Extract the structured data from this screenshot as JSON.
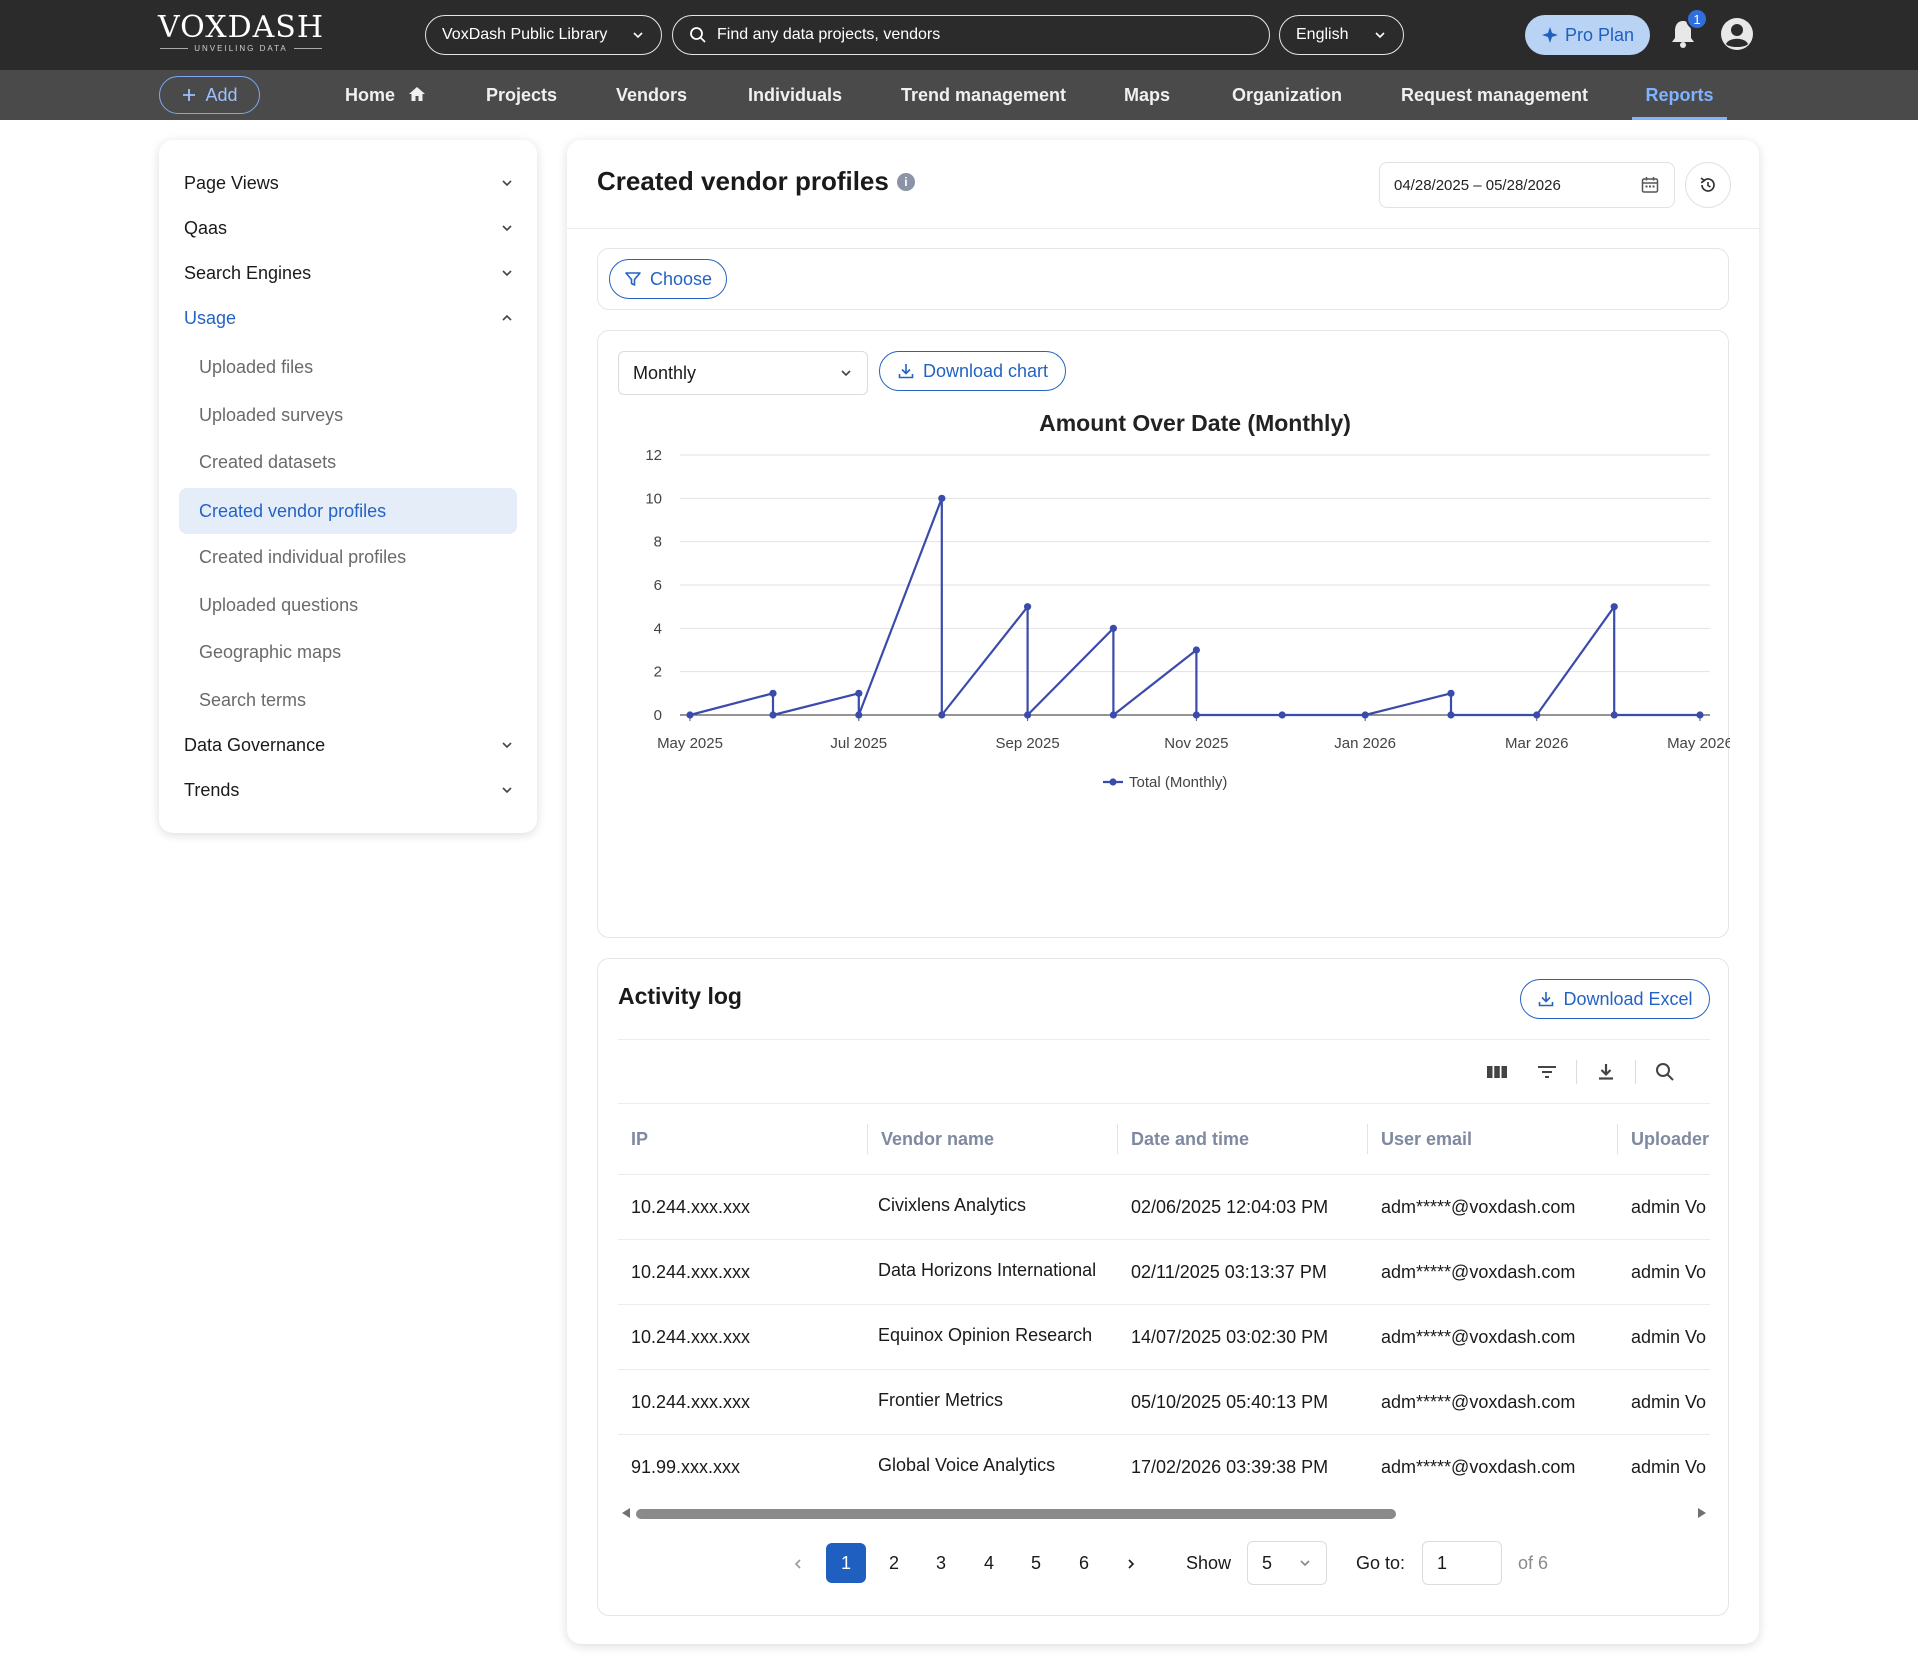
{
  "header": {
    "logo_name": "VOXDASH",
    "logo_tagline": "UNVEILING DATA",
    "library_select": "VoxDash Public Library",
    "search_placeholder": "Find any data projects, vendors",
    "language": "English",
    "pro_plan": "Pro Plan",
    "notification_count": "1"
  },
  "nav": {
    "add_label": "Add",
    "items": [
      "Home",
      "Projects",
      "Vendors",
      "Individuals",
      "Trend management",
      "Maps",
      "Organization",
      "Request management",
      "Reports"
    ],
    "active": "Reports"
  },
  "sidebar": {
    "groups": [
      "Page Views",
      "Qaas",
      "Search Engines",
      "Usage",
      "Data Governance",
      "Trends"
    ],
    "open_group": "Usage",
    "usage_items": [
      "Uploaded files",
      "Uploaded surveys",
      "Created datasets",
      "Created vendor profiles",
      "Created individual profiles",
      "Uploaded questions",
      "Geographic maps",
      "Search terms"
    ],
    "active_item": "Created vendor profiles"
  },
  "main": {
    "title": "Created vendor profiles",
    "date_range": "04/28/2025 – 05/28/2026",
    "choose_label": "Choose",
    "period": "Monthly",
    "download_chart": "Download chart"
  },
  "chart_data": {
    "type": "line",
    "title": "Amount Over Date (Monthly)",
    "xlabel": "",
    "ylabel": "",
    "ylim": [
      0,
      12
    ],
    "yticks": [
      0,
      2,
      4,
      6,
      8,
      10,
      12
    ],
    "xtick_labels": [
      "May 2025",
      "Jul 2025",
      "Sep 2025",
      "Nov 2025",
      "Jan 2026",
      "Mar 2026",
      "May 2026"
    ],
    "legend_position": "bottom-center",
    "grid": true,
    "series": [
      {
        "name": "Total (Monthly)",
        "color": "#3b4bab",
        "points": [
          {
            "x": "2025-04-28",
            "y": 0
          },
          {
            "x": "2025-05-28",
            "y": 1
          },
          {
            "x": "2025-05-28",
            "y": 0
          },
          {
            "x": "2025-06-28",
            "y": 1
          },
          {
            "x": "2025-06-28",
            "y": 0
          },
          {
            "x": "2025-07-28",
            "y": 10
          },
          {
            "x": "2025-07-28",
            "y": 0
          },
          {
            "x": "2025-08-28",
            "y": 5
          },
          {
            "x": "2025-08-28",
            "y": 0
          },
          {
            "x": "2025-09-28",
            "y": 4
          },
          {
            "x": "2025-09-28",
            "y": 0
          },
          {
            "x": "2025-10-28",
            "y": 3
          },
          {
            "x": "2025-10-28",
            "y": 0
          },
          {
            "x": "2025-11-28",
            "y": 0
          },
          {
            "x": "2025-12-28",
            "y": 0
          },
          {
            "x": "2026-01-28",
            "y": 1
          },
          {
            "x": "2026-01-28",
            "y": 0
          },
          {
            "x": "2026-02-28",
            "y": 0
          },
          {
            "x": "2026-03-28",
            "y": 5
          },
          {
            "x": "2026-03-28",
            "y": 0
          },
          {
            "x": "2026-04-28",
            "y": 0
          }
        ]
      }
    ]
  },
  "activity_log": {
    "title": "Activity log",
    "download_excel": "Download Excel",
    "columns": [
      "IP",
      "Vendor name",
      "Date and time",
      "User email",
      "Uploader"
    ],
    "rows": [
      [
        "10.244.xxx.xxx",
        "Civixlens Analytics",
        "02/06/2025 12:04:03 PM",
        "adm*****@voxdash.com",
        "admin Vo"
      ],
      [
        "10.244.xxx.xxx",
        "Data Horizons International",
        "02/11/2025 03:13:37 PM",
        "adm*****@voxdash.com",
        "admin Vo"
      ],
      [
        "10.244.xxx.xxx",
        "Equinox Opinion Research",
        "14/07/2025 03:02:30 PM",
        "adm*****@voxdash.com",
        "admin Vo"
      ],
      [
        "10.244.xxx.xxx",
        "Frontier Metrics",
        "05/10/2025 05:40:13 PM",
        "adm*****@voxdash.com",
        "admin Vo"
      ],
      [
        "91.99.xxx.xxx",
        "Global Voice Analytics",
        "17/02/2026 03:39:38 PM",
        "adm*****@voxdash.com",
        "admin Vo"
      ]
    ]
  },
  "pagination": {
    "pages": [
      "1",
      "2",
      "3",
      "4",
      "5",
      "6"
    ],
    "current": "1",
    "show_label": "Show",
    "page_size": "5",
    "goto_label": "Go to:",
    "goto_value": "1",
    "of_label": "of 6"
  },
  "colors": {
    "accent": "#2463c4",
    "topbar": "#2b2b2b",
    "navbar": "#4a4a4a",
    "series": "#3b4bab"
  }
}
